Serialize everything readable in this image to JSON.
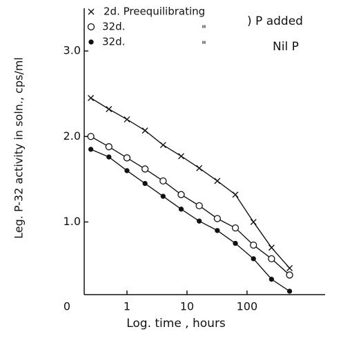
{
  "chart_data": {
    "type": "line",
    "xlabel": "Log. time , hours",
    "ylabel": "Leg. P-32 activity in soln., cps/ml",
    "xscale": "log",
    "xlim": [
      0.1,
      2000
    ],
    "ylim": [
      0.15,
      3.5
    ],
    "xticks": [
      {
        "value": 0.1,
        "label": "0"
      },
      1,
      10,
      100
    ],
    "yticks": [
      {
        "value": 1,
        "label": "1.0"
      },
      {
        "value": 2,
        "label": "2.0"
      },
      {
        "value": 3,
        "label": "3.0"
      }
    ],
    "grid": false,
    "x": [
      0.25,
      0.5,
      1,
      2,
      4,
      8,
      16,
      32,
      64,
      128,
      256,
      512
    ],
    "series": [
      {
        "name": "2d. Preequilibrating",
        "marker": "x",
        "color": "#111111",
        "values": [
          2.45,
          2.32,
          2.2,
          2.07,
          1.9,
          1.77,
          1.63,
          1.48,
          1.32,
          1.0,
          0.7,
          0.46
        ]
      },
      {
        "name": "32d.",
        "marker": "o",
        "color": "#111111",
        "values": [
          2.0,
          1.88,
          1.75,
          1.62,
          1.48,
          1.32,
          1.19,
          1.04,
          0.93,
          0.73,
          0.57,
          0.38
        ]
      },
      {
        "name": "32d.",
        "marker": "filled",
        "color": "#111111",
        "values": [
          1.85,
          1.76,
          1.6,
          1.45,
          1.3,
          1.15,
          1.01,
          0.9,
          0.75,
          0.57,
          0.33,
          0.19
        ]
      }
    ],
    "annotations": [
      "\"",
      "\"",
      ") P added",
      "Nil P"
    ]
  }
}
